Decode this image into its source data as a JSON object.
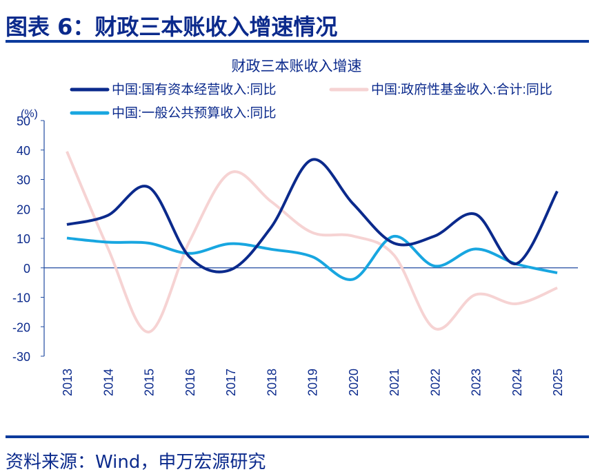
{
  "figure_title": "图表 6：财政三本账收入增速情况",
  "source": "资料来源：Wind，申万宏源研究",
  "chart_data": {
    "type": "line",
    "title": "财政三本账收入增速",
    "yunit": "(%)",
    "ylim": [
      -30,
      50
    ],
    "yticks": [
      50,
      40,
      30,
      20,
      10,
      0,
      -10,
      -20,
      -30
    ],
    "categories": [
      "2013",
      "2014",
      "2015",
      "2016",
      "2017",
      "2018",
      "2019",
      "2020",
      "2021",
      "2022",
      "2023",
      "2024",
      "2025"
    ],
    "grid": false,
    "legend": "top",
    "series": [
      {
        "name": "中国:国有资本经营收入:同比",
        "color": "#0b2a8c",
        "values": [
          14.7,
          17.8,
          27.4,
          3.7,
          -0.7,
          13.8,
          36.7,
          21.8,
          8.4,
          10.8,
          18.2,
          1.4,
          26.0
        ]
      },
      {
        "name": "中国:政府性基金收入:合计:同比",
        "color": "#f6d3d3",
        "values": [
          39.5,
          6.8,
          -21.8,
          9.0,
          32.3,
          22.5,
          12.0,
          10.8,
          4.4,
          -20.6,
          -9.1,
          -12.2,
          -6.8
        ]
      },
      {
        "name": "中国:一般公共预算收入:同比",
        "color": "#18a6e0",
        "values": [
          10.1,
          8.7,
          8.4,
          4.9,
          8.2,
          6.3,
          3.8,
          -3.9,
          10.7,
          0.6,
          6.4,
          1.3,
          -1.7
        ]
      }
    ]
  }
}
